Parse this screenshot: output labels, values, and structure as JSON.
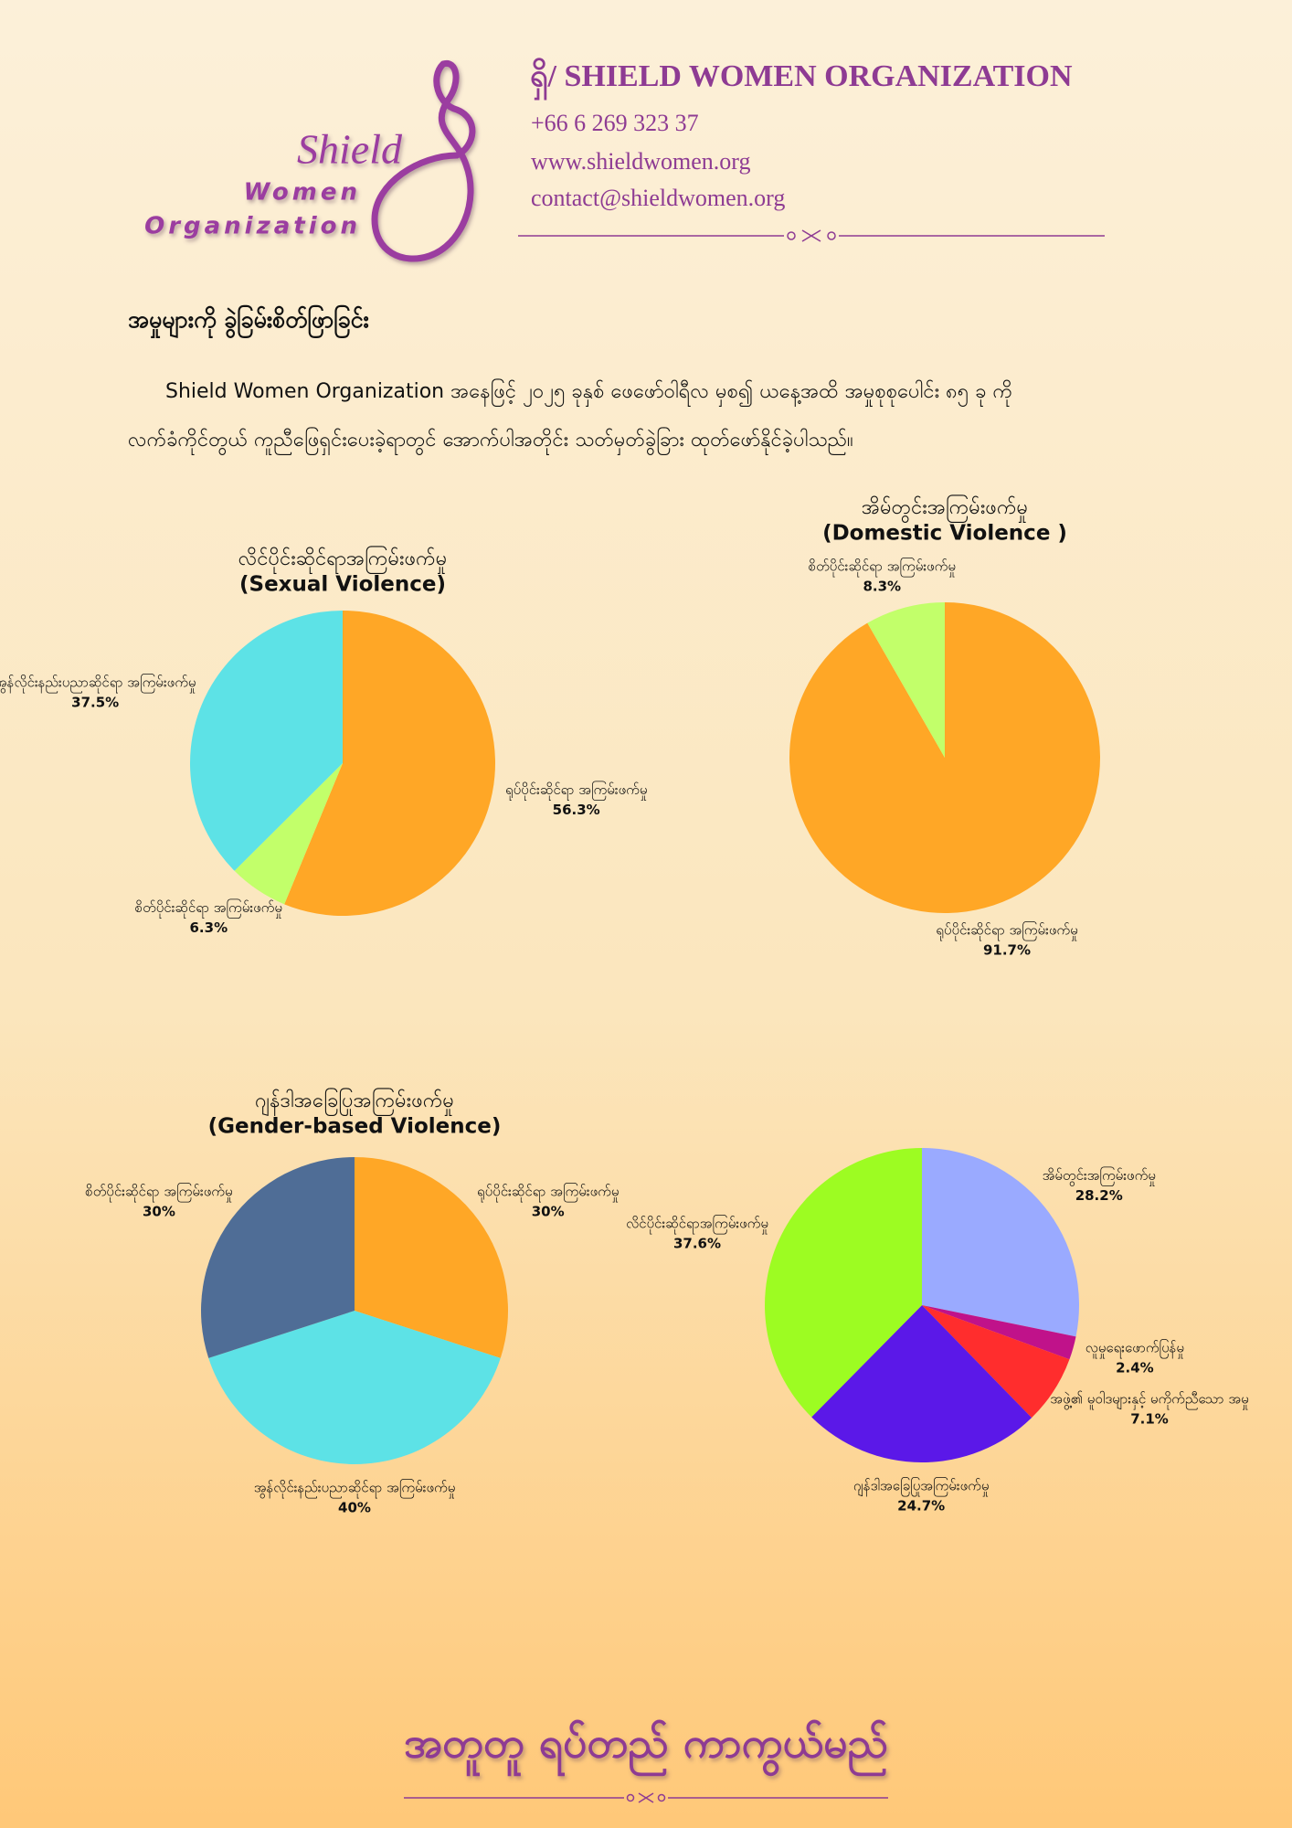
{
  "header": {
    "logo_word": "Shield",
    "logo_line1": "Women",
    "logo_line2": "Organization",
    "org_name": "ရှိ/ SHIELD WOMEN ORGANIZATION",
    "phone": "+66 6 269 323 37",
    "website": "www.shieldwomen.org",
    "email": "contact@shieldwomen.org"
  },
  "section": {
    "heading": "အမှုများကို ခွဲခြမ်းစိတ်ဖြာခြင်း",
    "paragraph": [
      "Shield Women Organization အနေဖြင့် ၂၀၂၅ ခုနှစ် ဖေဖော်ဝါရီလ မှစ၍ ယနေ့အထိ အမှုစုစုပေါင်း ၈၅ ခု ကို",
      "လက်ခံကိုင်တွယ် ကူညီဖြေရှင်းပေးခဲ့ရာတွင် အောက်ပါအတိုင်း သတ်မှတ်ခွဲခြား ထုတ်ဖော်နိုင်ခဲ့ပါသည်။"
    ]
  },
  "chart_data": [
    {
      "type": "pie",
      "title": "လိင်ပိုင်းဆိုင်ရာအကြမ်းဖက်မှု",
      "subtitle": "(Sexual Violence)",
      "categories": [
        "ရုပ်ပိုင်းဆိုင်ရာ အကြမ်းဖက်မှု",
        "စိတ်ပိုင်းဆိုင်ရာ အကြမ်းဖက်မှု",
        "အွန်လိုင်းနည်းပညာဆိုင်ရာ အကြမ်းဖက်မှု"
      ],
      "values": [
        56.3,
        6.3,
        37.5
      ],
      "value_labels": [
        "56.3%",
        "6.3%",
        "37.5%"
      ],
      "colors": [
        "#ffa726",
        "#c2ff6a",
        "#5de2e6"
      ]
    },
    {
      "type": "pie",
      "title": "အိမ်တွင်းအကြမ်းဖက်မှု",
      "subtitle": "(Domestic Violence )",
      "categories": [
        "ရုပ်ပိုင်းဆိုင်ရာ အကြမ်းဖက်မှု",
        "စိတ်ပိုင်းဆိုင်ရာ အကြမ်းဖက်မှု"
      ],
      "values": [
        91.7,
        8.3
      ],
      "value_labels": [
        "91.7%",
        "8.3%"
      ],
      "colors": [
        "#ffa726",
        "#c2ff6a"
      ]
    },
    {
      "type": "pie",
      "title": "ဂျန်ဒါအခြေပြုအကြမ်းဖက်မှု",
      "subtitle": "(Gender-based Violence)",
      "categories": [
        "ရုပ်ပိုင်းဆိုင်ရာ အကြမ်းဖက်မှု",
        "အွန်လိုင်းနည်းပညာဆိုင်ရာ အကြမ်းဖက်မှု",
        "စိတ်ပိုင်းဆိုင်ရာ အကြမ်းဖက်မှု"
      ],
      "values": [
        30,
        40,
        30
      ],
      "value_labels": [
        "30%",
        "40%",
        "30%"
      ],
      "colors": [
        "#ffa726",
        "#5de2e6",
        "#4f6d96"
      ]
    },
    {
      "type": "pie",
      "categories": [
        "အိမ်တွင်းအကြမ်းဖက်မှု",
        "လူမှုရေးဖောက်ပြန်မှု",
        "အဖွဲ့၏ မူဝါဒများနှင့် မကိုက်ညီသော အမှု",
        "ဂျန်ဒါအခြေပြုအကြမ်းဖက်မှု",
        "လိင်ပိုင်းဆိုင်ရာအကြမ်းဖက်မှု"
      ],
      "values": [
        28.2,
        2.4,
        7.1,
        24.7,
        37.6
      ],
      "value_labels": [
        "28.2%",
        "2.4%",
        "7.1%",
        "24.7%",
        "37.6%"
      ],
      "colors": [
        "#9aaaff",
        "#c0128a",
        "#ff2d2d",
        "#5b18e8",
        "#9dfc22"
      ]
    }
  ],
  "footer": {
    "slogan": "အတူတူ ရပ်တည် ကာကွယ်မည်"
  }
}
